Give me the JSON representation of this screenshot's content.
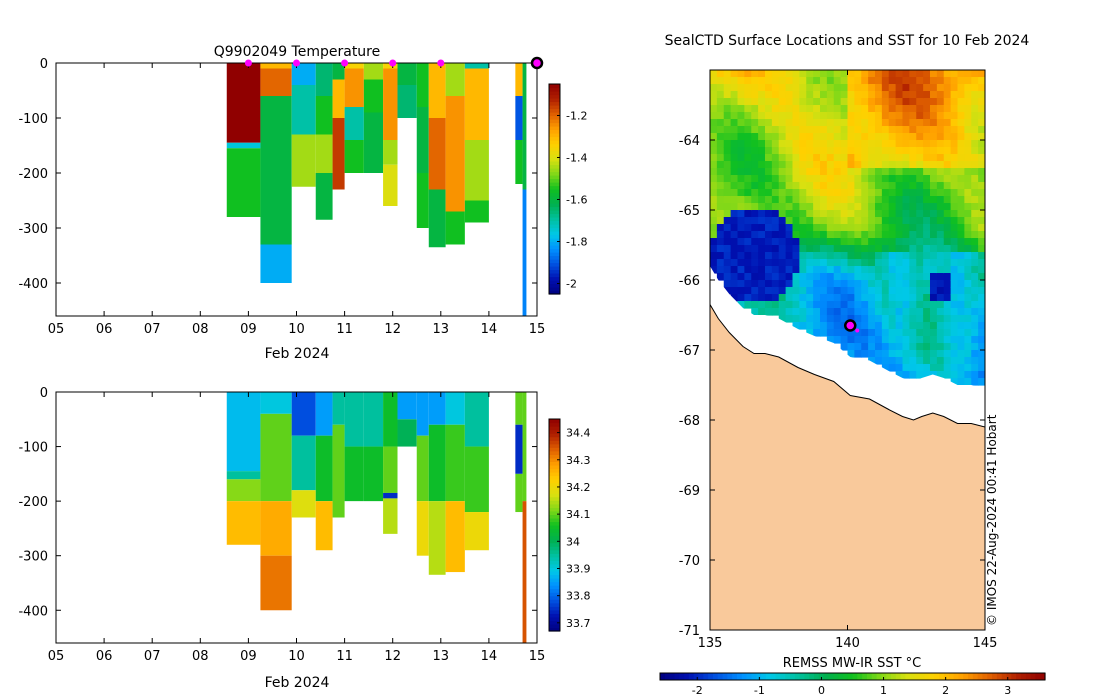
{
  "colors": {
    "land": "#f9c99b",
    "coast": "#000000",
    "marker_fill": "#ff00ff",
    "marker_edge": "#000000",
    "ocean_blank": "#ffffff"
  },
  "colormap": [
    "#00007f",
    "#0010b0",
    "#0050e0",
    "#0090ff",
    "#00c8e8",
    "#00c0a0",
    "#00b050",
    "#10c020",
    "#80d818",
    "#d8e010",
    "#ffd000",
    "#ffa000",
    "#e06000",
    "#b02000",
    "#900000"
  ],
  "chart_data": [
    {
      "id": "temperature-section",
      "type": "heatmap",
      "title": "Q9902049  Temperature",
      "xlabel": "Feb 2024",
      "x_ticks": [
        "05",
        "06",
        "07",
        "08",
        "09",
        "10",
        "11",
        "12",
        "13",
        "14",
        "15"
      ],
      "x_tick_values": [
        5,
        6,
        7,
        8,
        9,
        10,
        11,
        12,
        13,
        14,
        15
      ],
      "xlim": [
        5,
        15
      ],
      "ylim": [
        -460,
        0
      ],
      "y_ticks": [
        0,
        -100,
        -200,
        -300,
        -400
      ],
      "y_tick_labels": [
        "0",
        "-100",
        "-200",
        "-300",
        "-400"
      ],
      "colorbar": {
        "min": -2.05,
        "max": -1.05,
        "ticks": [
          -2,
          -1.8,
          -1.6,
          -1.4,
          -1.2
        ],
        "tick_labels": [
          "-2",
          "-1.8",
          "-1.6",
          "-1.4",
          "-1.2"
        ]
      },
      "surface_markers_x": [
        9,
        10,
        11,
        12,
        13
      ],
      "current_marker_x": 15,
      "profiles": [
        {
          "t0": 8.55,
          "t1": 9.25,
          "layers": [
            [
              0,
              -145,
              -1.05
            ],
            [
              -145,
              -155,
              -1.75
            ],
            [
              -155,
              -280,
              -1.55
            ]
          ]
        },
        {
          "t0": 9.25,
          "t1": 9.9,
          "layers": [
            [
              0,
              -10,
              -1.3
            ],
            [
              -10,
              -60,
              -1.2
            ],
            [
              -60,
              -330,
              -1.6
            ],
            [
              -330,
              -400,
              -1.8
            ]
          ]
        },
        {
          "t0": 9.9,
          "t1": 10.4,
          "layers": [
            [
              0,
              -40,
              -1.8
            ],
            [
              -40,
              -130,
              -1.7
            ],
            [
              -130,
              -225,
              -1.45
            ]
          ]
        },
        {
          "t0": 10.4,
          "t1": 10.75,
          "layers": [
            [
              0,
              -60,
              -1.65
            ],
            [
              -60,
              -130,
              -1.55
            ],
            [
              -130,
              -200,
              -1.45
            ],
            [
              -200,
              -285,
              -1.6
            ]
          ]
        },
        {
          "t0": 10.75,
          "t1": 11.0,
          "layers": [
            [
              0,
              -30,
              -1.6
            ],
            [
              -30,
              -100,
              -1.3
            ],
            [
              -100,
              -230,
              -1.15
            ]
          ]
        },
        {
          "t0": 11.0,
          "t1": 11.4,
          "layers": [
            [
              0,
              -10,
              -1.35
            ],
            [
              -10,
              -80,
              -1.25
            ],
            [
              -80,
              -140,
              -1.7
            ],
            [
              -140,
              -200,
              -1.55
            ]
          ]
        },
        {
          "t0": 11.4,
          "t1": 11.8,
          "layers": [
            [
              0,
              -30,
              -1.45
            ],
            [
              -30,
              -90,
              -1.55
            ],
            [
              -90,
              -200,
              -1.6
            ]
          ]
        },
        {
          "t0": 11.8,
          "t1": 12.1,
          "layers": [
            [
              0,
              -10,
              -1.35
            ],
            [
              -10,
              -140,
              -1.25
            ],
            [
              -140,
              -185,
              -1.45
            ],
            [
              -185,
              -260,
              -1.4
            ]
          ]
        },
        {
          "t0": 12.1,
          "t1": 12.5,
          "layers": [
            [
              0,
              -40,
              -1.6
            ],
            [
              -40,
              -100,
              -1.65
            ]
          ]
        },
        {
          "t0": 12.5,
          "t1": 12.75,
          "layers": [
            [
              0,
              -80,
              -1.55
            ],
            [
              -80,
              -200,
              -1.6
            ],
            [
              -200,
              -300,
              -1.55
            ]
          ]
        },
        {
          "t0": 12.75,
          "t1": 13.1,
          "layers": [
            [
              0,
              -100,
              -1.3
            ],
            [
              -100,
              -230,
              -1.2
            ],
            [
              -230,
              -335,
              -1.6
            ]
          ]
        },
        {
          "t0": 13.1,
          "t1": 13.5,
          "layers": [
            [
              0,
              -60,
              -1.45
            ],
            [
              -60,
              -270,
              -1.25
            ],
            [
              -270,
              -330,
              -1.55
            ]
          ]
        },
        {
          "t0": 13.5,
          "t1": 14.0,
          "layers": [
            [
              0,
              -10,
              -1.7
            ],
            [
              -10,
              -140,
              -1.3
            ],
            [
              -140,
              -250,
              -1.45
            ],
            [
              -250,
              -290,
              -1.55
            ]
          ]
        },
        {
          "t0": 14.55,
          "t1": 14.7,
          "layers": [
            [
              0,
              -60,
              -1.3
            ],
            [
              -60,
              -140,
              -1.9
            ],
            [
              -140,
              -220,
              -1.55
            ]
          ]
        },
        {
          "t0": 14.7,
          "t1": 14.78,
          "layers": [
            [
              0,
              -230,
              -1.6
            ],
            [
              -230,
              -460,
              -1.85
            ]
          ]
        }
      ]
    },
    {
      "id": "salinity-section",
      "type": "heatmap",
      "title": "",
      "xlabel": "Feb 2024",
      "x_ticks": [
        "05",
        "06",
        "07",
        "08",
        "09",
        "10",
        "11",
        "12",
        "13",
        "14",
        "15"
      ],
      "x_tick_values": [
        5,
        6,
        7,
        8,
        9,
        10,
        11,
        12,
        13,
        14,
        15
      ],
      "xlim": [
        5,
        15
      ],
      "ylim": [
        -460,
        0
      ],
      "y_ticks": [
        0,
        -100,
        -200,
        -300,
        -400
      ],
      "y_tick_labels": [
        "0",
        "-100",
        "-200",
        "-300",
        "-400"
      ],
      "colorbar": {
        "min": 33.67,
        "max": 34.45,
        "ticks": [
          33.7,
          33.8,
          33.9,
          34,
          34.1,
          34.2,
          34.3,
          34.4
        ],
        "tick_labels": [
          "33.7",
          "33.8",
          "33.9",
          "34",
          "34.1",
          "34.2",
          "34.3",
          "34.4"
        ]
      },
      "profiles": [
        {
          "t0": 8.55,
          "t1": 9.25,
          "layers": [
            [
              0,
              -145,
              33.88
            ],
            [
              -145,
              -160,
              33.95
            ],
            [
              -160,
              -200,
              34.12
            ],
            [
              -200,
              -280,
              34.25
            ]
          ]
        },
        {
          "t0": 9.25,
          "t1": 9.9,
          "layers": [
            [
              0,
              -40,
              33.9
            ],
            [
              -40,
              -200,
              34.1
            ],
            [
              -200,
              -300,
              34.27
            ],
            [
              -300,
              -400,
              34.32
            ]
          ]
        },
        {
          "t0": 9.9,
          "t1": 10.4,
          "layers": [
            [
              0,
              -80,
              33.78
            ],
            [
              -80,
              -180,
              33.95
            ],
            [
              -180,
              -230,
              34.18
            ]
          ]
        },
        {
          "t0": 10.4,
          "t1": 10.75,
          "layers": [
            [
              0,
              -80,
              33.85
            ],
            [
              -80,
              -200,
              34.05
            ],
            [
              -200,
              -290,
              34.25
            ]
          ]
        },
        {
          "t0": 10.75,
          "t1": 11.0,
          "layers": [
            [
              0,
              -60,
              33.95
            ],
            [
              -60,
              -230,
              34.1
            ]
          ]
        },
        {
          "t0": 11.0,
          "t1": 11.4,
          "layers": [
            [
              0,
              -100,
              33.95
            ],
            [
              -100,
              -200,
              34.05
            ]
          ]
        },
        {
          "t0": 11.4,
          "t1": 11.8,
          "layers": [
            [
              0,
              -100,
              33.95
            ],
            [
              -100,
              -200,
              34.05
            ]
          ]
        },
        {
          "t0": 11.8,
          "t1": 12.1,
          "layers": [
            [
              0,
              -100,
              34.05
            ],
            [
              -100,
              -185,
              34.1
            ],
            [
              -185,
              -195,
              33.75
            ],
            [
              -195,
              -260,
              34.15
            ]
          ]
        },
        {
          "t0": 12.1,
          "t1": 12.5,
          "layers": [
            [
              0,
              -50,
              33.85
            ],
            [
              -50,
              -100,
              34.0
            ]
          ]
        },
        {
          "t0": 12.5,
          "t1": 12.75,
          "layers": [
            [
              0,
              -80,
              33.85
            ],
            [
              -80,
              -200,
              34.1
            ],
            [
              -200,
              -300,
              34.2
            ]
          ]
        },
        {
          "t0": 12.75,
          "t1": 13.1,
          "layers": [
            [
              0,
              -60,
              33.85
            ],
            [
              -60,
              -200,
              34.05
            ],
            [
              -200,
              -335,
              34.15
            ]
          ]
        },
        {
          "t0": 13.1,
          "t1": 13.5,
          "layers": [
            [
              0,
              -60,
              33.9
            ],
            [
              -60,
              -200,
              34.08
            ],
            [
              -200,
              -330,
              34.25
            ]
          ]
        },
        {
          "t0": 13.5,
          "t1": 14.0,
          "layers": [
            [
              0,
              -100,
              33.95
            ],
            [
              -100,
              -220,
              34.08
            ],
            [
              -220,
              -290,
              34.2
            ]
          ]
        },
        {
          "t0": 14.55,
          "t1": 14.7,
          "layers": [
            [
              0,
              -60,
              34.1
            ],
            [
              -60,
              -150,
              33.75
            ],
            [
              -150,
              -220,
              34.1
            ]
          ]
        },
        {
          "t0": 14.7,
          "t1": 14.78,
          "layers": [
            [
              0,
              -200,
              34.1
            ],
            [
              -200,
              -460,
              34.35
            ]
          ]
        }
      ]
    },
    {
      "id": "sst-map",
      "type": "heatmap",
      "title": "SealCTD Surface Locations and SST for 10 Feb 2024",
      "colorbar_label": "REMSS MW-IR SST °C",
      "x_ticks": [
        "135",
        "140",
        "145"
      ],
      "x_tick_values": [
        135,
        140,
        145
      ],
      "xlim": [
        135,
        145
      ],
      "ylim": [
        -71,
        -63
      ],
      "y_ticks": [
        "-64",
        "-65",
        "-66",
        "-67",
        "-68",
        "-69",
        "-70",
        "-71"
      ],
      "y_tick_values": [
        -64,
        -65,
        -66,
        -67,
        -68,
        -69,
        -70,
        -71
      ],
      "colorbar": {
        "min": -2.6,
        "max": 3.6,
        "ticks": [
          -2,
          -1,
          0,
          1,
          2,
          3
        ],
        "tick_labels": [
          "-2",
          "-1",
          "0",
          "1",
          "2",
          "3"
        ]
      },
      "seal_location": {
        "lon": 140.1,
        "lat": -66.65
      },
      "copyright": "©  IMOS 22-Aug-2024 00:41 Hobart"
    }
  ]
}
